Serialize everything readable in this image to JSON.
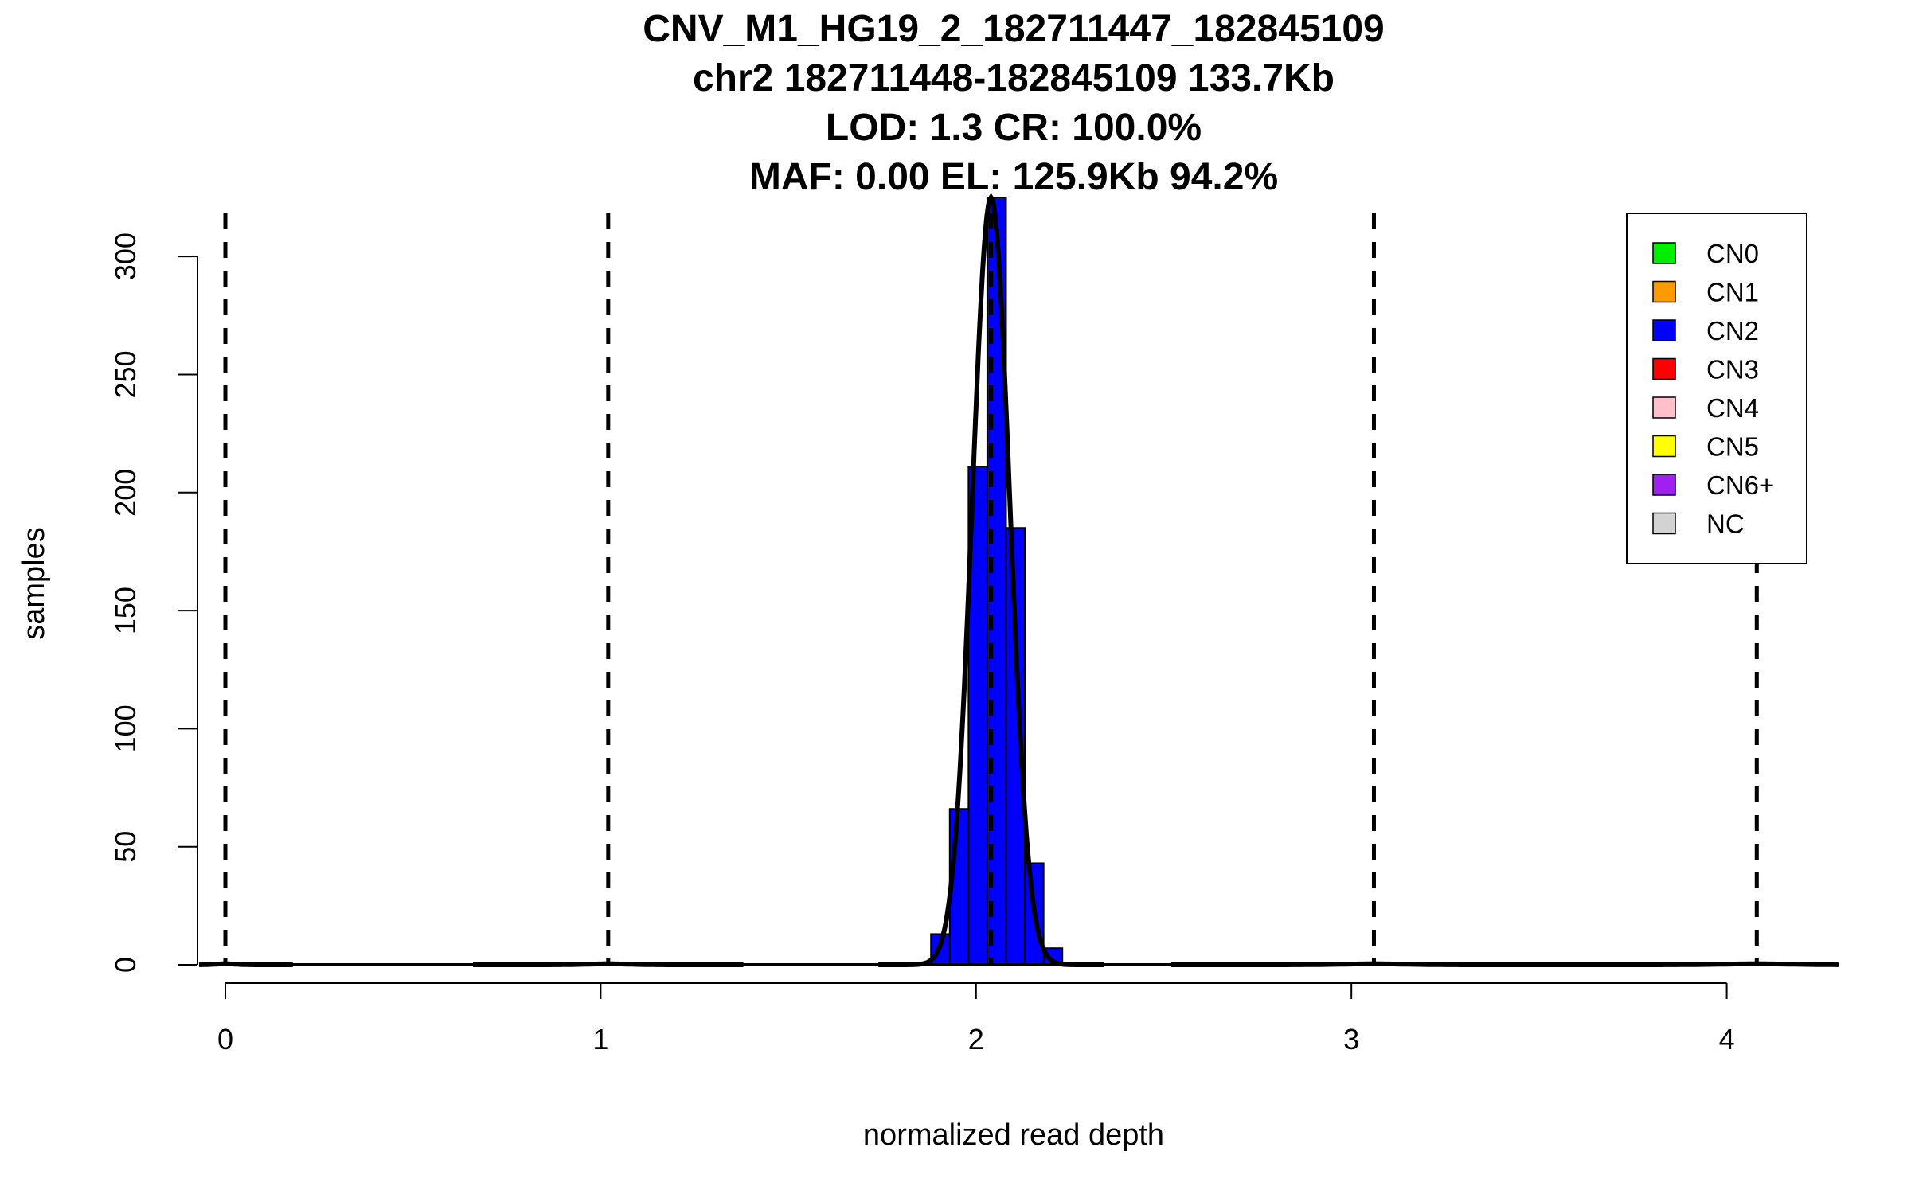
{
  "chart_data": {
    "type": "bar",
    "title_lines": [
      "CNV_M1_HG19_2_182711447_182845109",
      "chr2 182711448-182845109 133.7Kb",
      "LOD: 1.3 CR: 100.0%",
      "MAF: 0.00 EL: 125.9Kb 94.2%"
    ],
    "xlabel": "normalized read depth",
    "ylabel": "samples",
    "xlim": [
      -0.07,
      4.3
    ],
    "ylim": [
      0,
      325
    ],
    "x_ticks": [
      0,
      1,
      2,
      3,
      4
    ],
    "y_ticks": [
      0,
      50,
      100,
      150,
      200,
      250,
      300
    ],
    "bin_width": 0.05,
    "bins": [
      {
        "start": 1.88,
        "end": 1.93,
        "count": 13
      },
      {
        "start": 1.93,
        "end": 1.98,
        "count": 66
      },
      {
        "start": 1.98,
        "end": 2.03,
        "count": 211
      },
      {
        "start": 2.03,
        "end": 2.08,
        "count": 325
      },
      {
        "start": 2.08,
        "end": 2.13,
        "count": 185
      },
      {
        "start": 2.13,
        "end": 2.18,
        "count": 43
      },
      {
        "start": 2.18,
        "end": 2.23,
        "count": 7
      }
    ],
    "bar_color": "#0000ff",
    "fit_curves": [
      {
        "copy_number": 0,
        "mean": 0.0,
        "sd": 0.03,
        "peak": 0.4
      },
      {
        "copy_number": 1,
        "mean": 1.02,
        "sd": 0.06,
        "peak": 0.4
      },
      {
        "copy_number": 2,
        "mean": 2.04,
        "sd": 0.05,
        "peak": 325
      },
      {
        "copy_number": 3,
        "mean": 3.06,
        "sd": 0.09,
        "peak": 0.4
      },
      {
        "copy_number": 4,
        "mean": 4.08,
        "sd": 0.1,
        "peak": 0.4
      }
    ],
    "cn_boundaries": [
      0.0,
      1.02,
      2.04,
      3.06,
      4.08
    ],
    "grid": false,
    "legend_position": "top-right",
    "legend": [
      {
        "label": "CN0",
        "color": "#00ee00"
      },
      {
        "label": "CN1",
        "color": "#ff9900"
      },
      {
        "label": "CN2",
        "color": "#0000ff"
      },
      {
        "label": "CN3",
        "color": "#ff0000"
      },
      {
        "label": "CN4",
        "color": "#ffc0cb"
      },
      {
        "label": "CN5",
        "color": "#ffff00"
      },
      {
        "label": "CN6+",
        "color": "#a020f0"
      },
      {
        "label": "NC",
        "color": "#d3d3d3"
      }
    ]
  }
}
